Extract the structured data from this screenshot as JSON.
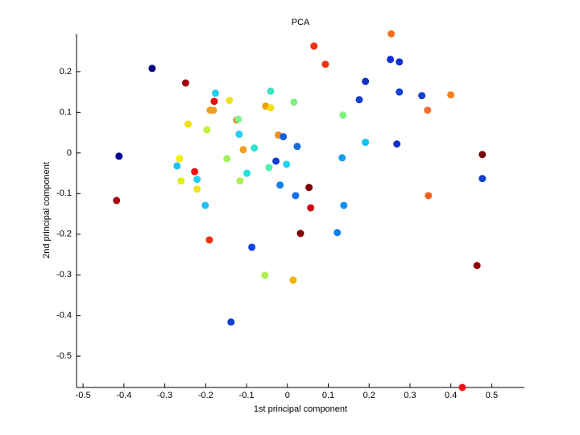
{
  "chart_data": {
    "type": "scatter",
    "title": "PCA",
    "x_label": "1st principal component",
    "y_label": "2nd principal component",
    "x": [
      0.254,
      0.065,
      0.093,
      0.252,
      0.274,
      -0.331,
      -0.249,
      0.191,
      -0.176,
      -0.041,
      0.274,
      0.329,
      0.4,
      -0.142,
      -0.179,
      0.176,
      0.016,
      -0.053,
      -0.041,
      0.343,
      -0.189,
      -0.181,
      0.136,
      -0.124,
      -0.12,
      -0.243,
      -0.197,
      -0.118,
      -0.022,
      -0.01,
      0.191,
      0.268,
      0.024,
      -0.081,
      -0.108,
      0.477,
      -0.412,
      -0.264,
      -0.148,
      0.134,
      -0.028,
      -0.27,
      -0.002,
      -0.045,
      -0.227,
      -0.099,
      0.477,
      -0.221,
      -0.26,
      -0.116,
      -0.018,
      0.053,
      -0.221,
      0.02,
      0.345,
      -0.418,
      -0.201,
      0.138,
      0.057,
      0.032,
      0.122,
      -0.191,
      -0.087,
      0.464,
      -0.055,
      0.014,
      -0.138,
      0.428
    ],
    "values": [
      0.293,
      0.263,
      0.218,
      0.23,
      0.224,
      0.208,
      0.172,
      0.176,
      0.147,
      0.152,
      0.15,
      0.141,
      0.143,
      0.129,
      0.127,
      0.131,
      0.125,
      0.115,
      0.111,
      0.105,
      0.105,
      0.105,
      0.093,
      0.081,
      0.083,
      0.071,
      0.057,
      0.046,
      0.044,
      0.04,
      0.026,
      0.022,
      0.016,
      0.012,
      0.008,
      -0.004,
      -0.008,
      -0.014,
      -0.014,
      -0.012,
      -0.02,
      -0.032,
      -0.028,
      -0.036,
      -0.046,
      -0.05,
      -0.063,
      -0.065,
      -0.069,
      -0.069,
      -0.079,
      -0.085,
      -0.089,
      -0.105,
      -0.105,
      -0.117,
      -0.129,
      -0.129,
      -0.135,
      -0.198,
      -0.196,
      -0.214,
      -0.232,
      -0.277,
      -0.301,
      -0.313,
      -0.416,
      -0.577
    ],
    "colors": [
      "#f07020",
      "#f03010",
      "#f03010",
      "#1030d0",
      "#1030d0",
      "#000080",
      "#a00010",
      "#1030c0",
      "#20d0f0",
      "#40e0c0",
      "#1040d0",
      "#1040d0",
      "#f08020",
      "#f0e020",
      "#e01010",
      "#1040d0",
      "#80f080",
      "#f0a000",
      "#f0e010",
      "#f07030",
      "#f0a020",
      "#f0a020",
      "#80f080",
      "#f08010",
      "#80f090",
      "#f0e010",
      "#c0f040",
      "#20d0f0",
      "#f09020",
      "#1060e0",
      "#10c0f0",
      "#1030d0",
      "#1070e0",
      "#30e0d0",
      "#f0a020",
      "#800000",
      "#000090",
      "#f0f000",
      "#a0f060",
      "#10a0f0",
      "#1040d0",
      "#20c0f0",
      "#20d0f0",
      "#50f0b0",
      "#f01010",
      "#20e0e0",
      "#1040d0",
      "#20d0f0",
      "#e0f010",
      "#b0f050",
      "#1080f0",
      "#800000",
      "#f0e020",
      "#1070f0",
      "#f06020",
      "#b00010",
      "#20c0f0",
      "#1090f0",
      "#d00010",
      "#800000",
      "#1080f0",
      "#f03010",
      "#1040e0",
      "#900000",
      "#b0f050",
      "#f0b000",
      "#1040d0",
      "#f01010"
    ],
    "xlim": [
      -0.516,
      0.58
    ],
    "xticks": [
      -0.5,
      -0.4,
      -0.3,
      -0.2,
      -0.1,
      0,
      0.1,
      0.2,
      0.3,
      0.4,
      0.5
    ],
    "ylim": [
      -0.577,
      0.293
    ],
    "yticks": [
      -0.5,
      -0.4,
      -0.3,
      -0.2,
      -0.1,
      0,
      0.1,
      0.2
    ]
  }
}
